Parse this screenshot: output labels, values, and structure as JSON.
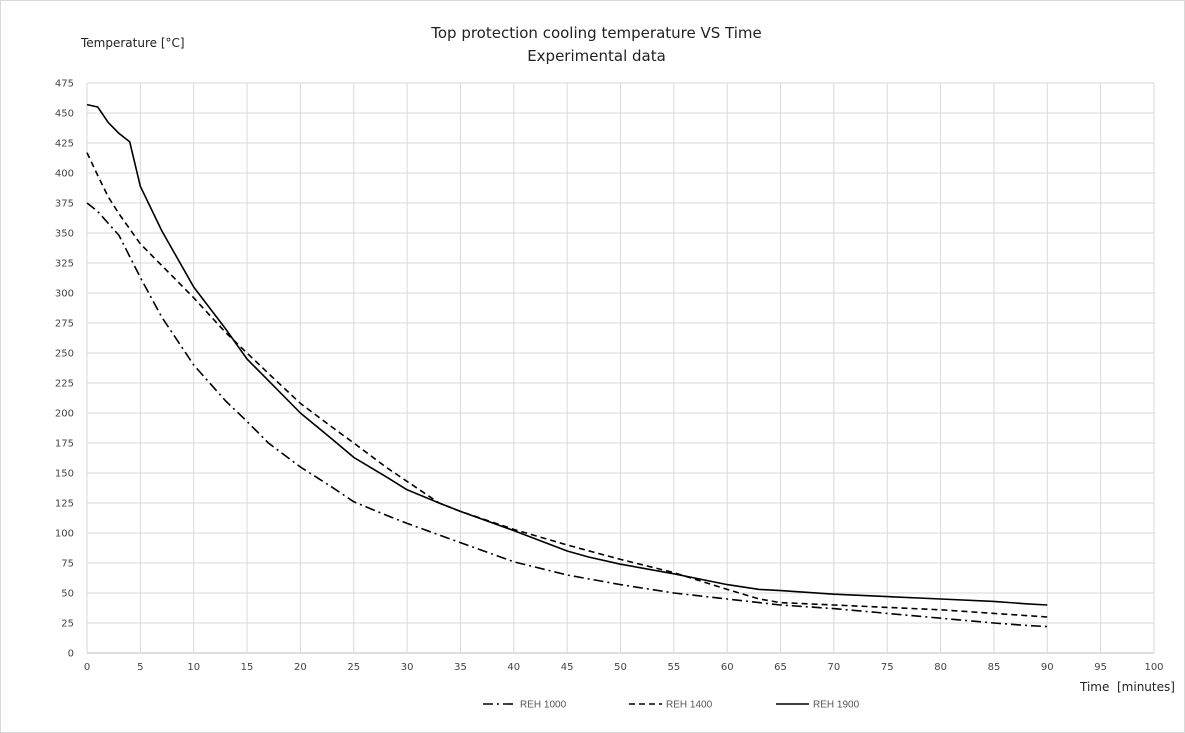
{
  "chart_data": {
    "type": "line",
    "title": "Top protection cooling temperature VS Time",
    "subtitle": "Experimental data",
    "ylabel": "Temperature [°C]",
    "xlabel": "Time  [minutes]",
    "xlim": [
      0,
      100
    ],
    "ylim": [
      0,
      475
    ],
    "xticks": [
      0,
      5,
      10,
      15,
      20,
      25,
      30,
      35,
      40,
      45,
      50,
      55,
      60,
      65,
      70,
      75,
      80,
      85,
      90,
      95,
      100
    ],
    "yticks": [
      0,
      25,
      50,
      75,
      100,
      125,
      150,
      175,
      200,
      225,
      250,
      275,
      300,
      325,
      350,
      375,
      400,
      425,
      450,
      475
    ],
    "grid": true,
    "legend_position": "bottom",
    "series": [
      {
        "name": "REH 1000",
        "style": "dash-dot",
        "color": "#000000",
        "x": [
          0,
          1,
          2,
          3,
          5,
          7,
          10,
          13,
          15,
          17,
          20,
          23,
          25,
          28,
          30,
          35,
          40,
          45,
          50,
          55,
          60,
          63,
          65,
          70,
          75,
          80,
          85,
          88,
          90
        ],
        "y": [
          375,
          368,
          358,
          348,
          313,
          280,
          240,
          210,
          193,
          175,
          155,
          138,
          126,
          115,
          108,
          92,
          76,
          65,
          57,
          50,
          45,
          42,
          40,
          37,
          33,
          29,
          25,
          23,
          22
        ]
      },
      {
        "name": "REH 1400",
        "style": "dashed",
        "color": "#000000",
        "x": [
          0,
          1,
          2,
          3,
          5,
          7,
          10,
          13,
          15,
          17,
          20,
          23,
          25,
          28,
          30,
          33,
          35,
          40,
          45,
          50,
          55,
          60,
          63,
          65,
          70,
          75,
          80,
          85,
          90
        ],
        "y": [
          417,
          398,
          380,
          366,
          341,
          323,
          296,
          267,
          250,
          233,
          208,
          188,
          175,
          155,
          143,
          125,
          118,
          103,
          90,
          78,
          67,
          53,
          45,
          42,
          40,
          38,
          36,
          33,
          30
        ]
      },
      {
        "name": "REH 1900",
        "style": "solid",
        "color": "#000000",
        "x": [
          0,
          1,
          2,
          3,
          4,
          5,
          7,
          10,
          13,
          15,
          17,
          20,
          23,
          25,
          28,
          30,
          33,
          35,
          40,
          45,
          47,
          50,
          55,
          60,
          63,
          65,
          70,
          75,
          80,
          85,
          88,
          90
        ],
        "y": [
          457,
          455,
          442,
          433,
          426,
          389,
          352,
          305,
          270,
          245,
          227,
          200,
          178,
          163,
          147,
          136,
          125,
          118,
          102,
          85,
          80,
          74,
          66,
          57,
          53,
          52,
          49,
          47,
          45,
          43,
          41,
          40
        ]
      }
    ]
  }
}
